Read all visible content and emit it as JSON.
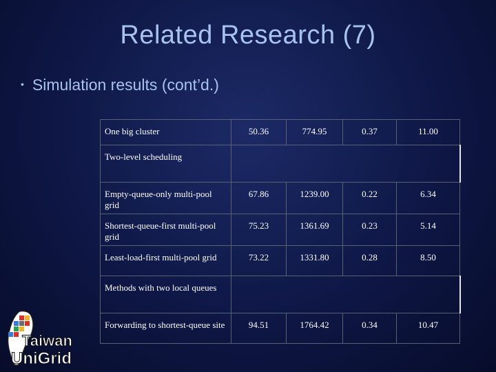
{
  "slide": {
    "title": "Related Research (7)",
    "bullet": "Simulation results (cont’d.)"
  },
  "table": {
    "rows": [
      {
        "type": "data",
        "label": "One big cluster",
        "values": [
          "50.36",
          "774.95",
          "0.37",
          "11.00"
        ]
      },
      {
        "type": "section",
        "label": "Two-level scheduling"
      },
      {
        "type": "data",
        "label": "Empty-queue-only multi-pool grid",
        "values": [
          "67.86",
          "1239.00",
          "0.22",
          "6.34"
        ]
      },
      {
        "type": "data",
        "label": "Shortest-queue-first multi-pool grid",
        "values": [
          "75.23",
          "1361.69",
          "0.23",
          "5.14"
        ]
      },
      {
        "type": "data",
        "label": "Least-load-first multi-pool grid",
        "values": [
          "73.22",
          "1331.80",
          "0.28",
          "8.50"
        ]
      },
      {
        "type": "section",
        "label": "Methods with two local queues"
      },
      {
        "type": "data",
        "label": "Forwarding to shortest-queue site",
        "values": [
          "94.51",
          "1764.42",
          "0.34",
          "10.47"
        ]
      }
    ]
  },
  "logo": {
    "line1": "Taiwan",
    "line2": "UniGrid"
  },
  "colors": {
    "title": "#a9c3f0",
    "table_text": "#ffffff",
    "grid": "#5a6170"
  }
}
